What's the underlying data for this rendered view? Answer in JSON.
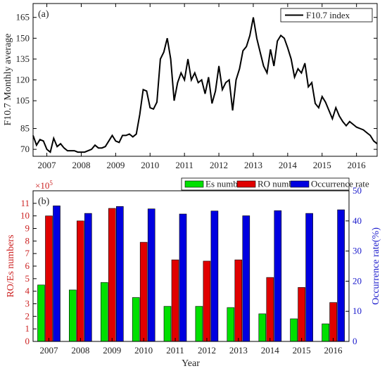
{
  "chart_data": [
    {
      "type": "line",
      "panel_label": "(a)",
      "ylabel": "F10.7 Monthly average",
      "ylim": [
        65,
        175
      ],
      "yticks": [
        70,
        85,
        105,
        120,
        135,
        150,
        165
      ],
      "xlim": [
        2006.6,
        2016.6
      ],
      "xticks": [
        2007,
        2008,
        2009,
        2010,
        2011,
        2012,
        2013,
        2014,
        2015,
        2016
      ],
      "legend": {
        "label": "F10.7 index",
        "position": "top-right"
      },
      "series": [
        {
          "name": "F10.7 index",
          "color": "#000000",
          "x": [
            2006.6,
            2006.7,
            2006.8,
            2006.9,
            2007.0,
            2007.1,
            2007.2,
            2007.3,
            2007.4,
            2007.5,
            2007.6,
            2007.7,
            2007.8,
            2007.9,
            2008.0,
            2008.1,
            2008.2,
            2008.3,
            2008.4,
            2008.5,
            2008.6,
            2008.7,
            2008.8,
            2008.9,
            2009.0,
            2009.1,
            2009.2,
            2009.3,
            2009.4,
            2009.5,
            2009.6,
            2009.7,
            2009.8,
            2009.9,
            2010.0,
            2010.1,
            2010.2,
            2010.3,
            2010.4,
            2010.5,
            2010.6,
            2010.7,
            2010.8,
            2010.9,
            2011.0,
            2011.1,
            2011.2,
            2011.3,
            2011.4,
            2011.5,
            2011.6,
            2011.7,
            2011.8,
            2011.9,
            2012.0,
            2012.1,
            2012.2,
            2012.3,
            2012.4,
            2012.5,
            2012.6,
            2012.7,
            2012.8,
            2012.9,
            2013.0,
            2013.1,
            2013.2,
            2013.3,
            2013.4,
            2013.5,
            2013.6,
            2013.7,
            2013.8,
            2013.9,
            2014.0,
            2014.1,
            2014.2,
            2014.3,
            2014.4,
            2014.5,
            2014.6,
            2014.7,
            2014.8,
            2014.9,
            2015.0,
            2015.1,
            2015.2,
            2015.3,
            2015.4,
            2015.5,
            2015.6,
            2015.7,
            2015.8,
            2015.9,
            2016.0,
            2016.1,
            2016.2,
            2016.3,
            2016.4,
            2016.5,
            2016.6
          ],
          "y": [
            80,
            73,
            77,
            76,
            70,
            68,
            78,
            72,
            74,
            71,
            69,
            69,
            69,
            68,
            68,
            68,
            69,
            70,
            73,
            71,
            71,
            72,
            76,
            80,
            76,
            75,
            80,
            80,
            81,
            79,
            81,
            95,
            113,
            112,
            100,
            99,
            104,
            135,
            140,
            150,
            135,
            105,
            118,
            125,
            120,
            135,
            120,
            125,
            118,
            120,
            110,
            122,
            103,
            112,
            130,
            113,
            118,
            120,
            98,
            120,
            128,
            141,
            144,
            152,
            165,
            150,
            140,
            130,
            125,
            142,
            130,
            148,
            152,
            150,
            143,
            135,
            122,
            128,
            125,
            132,
            115,
            118,
            103,
            100,
            108,
            104,
            98,
            92,
            100,
            94,
            90,
            87,
            90,
            88,
            86,
            85,
            84,
            82,
            80,
            76,
            74
          ]
        }
      ]
    },
    {
      "type": "bar",
      "panel_label": "(b)",
      "xlabel": "Year",
      "ylabel": "RO/Es numbers",
      "ylabel_right": "Occurrence rate(%)",
      "scale_note": "×10",
      "scale_exp": "5",
      "categories": [
        "2007",
        "2008",
        "2009",
        "2010",
        "2011",
        "2012",
        "2013",
        "2014",
        "2015",
        "2016"
      ],
      "ylim": [
        0,
        12
      ],
      "yticks": [
        0,
        1,
        2,
        3,
        4,
        5,
        6,
        7,
        8,
        9,
        10,
        11
      ],
      "ylim_right": [
        0,
        50
      ],
      "yticks_right": [
        0,
        10,
        20,
        30,
        40,
        50
      ],
      "legend_position": "top-right",
      "series": [
        {
          "name": "Es numbers",
          "axis": "left",
          "color": "#00e000",
          "values": [
            4.5,
            4.1,
            4.7,
            3.5,
            2.8,
            2.8,
            2.7,
            2.2,
            1.8,
            1.4
          ]
        },
        {
          "name": "RO numbers",
          "axis": "left",
          "color": "#e00000",
          "values": [
            10.0,
            9.6,
            10.6,
            7.9,
            6.5,
            6.4,
            6.5,
            5.1,
            4.3,
            3.1
          ]
        },
        {
          "name": "Occurrence rate",
          "axis": "right",
          "color": "#0000e0",
          "values": [
            45.0,
            42.5,
            44.8,
            44.0,
            42.3,
            43.3,
            41.7,
            43.4,
            42.5,
            43.7
          ]
        }
      ]
    }
  ]
}
